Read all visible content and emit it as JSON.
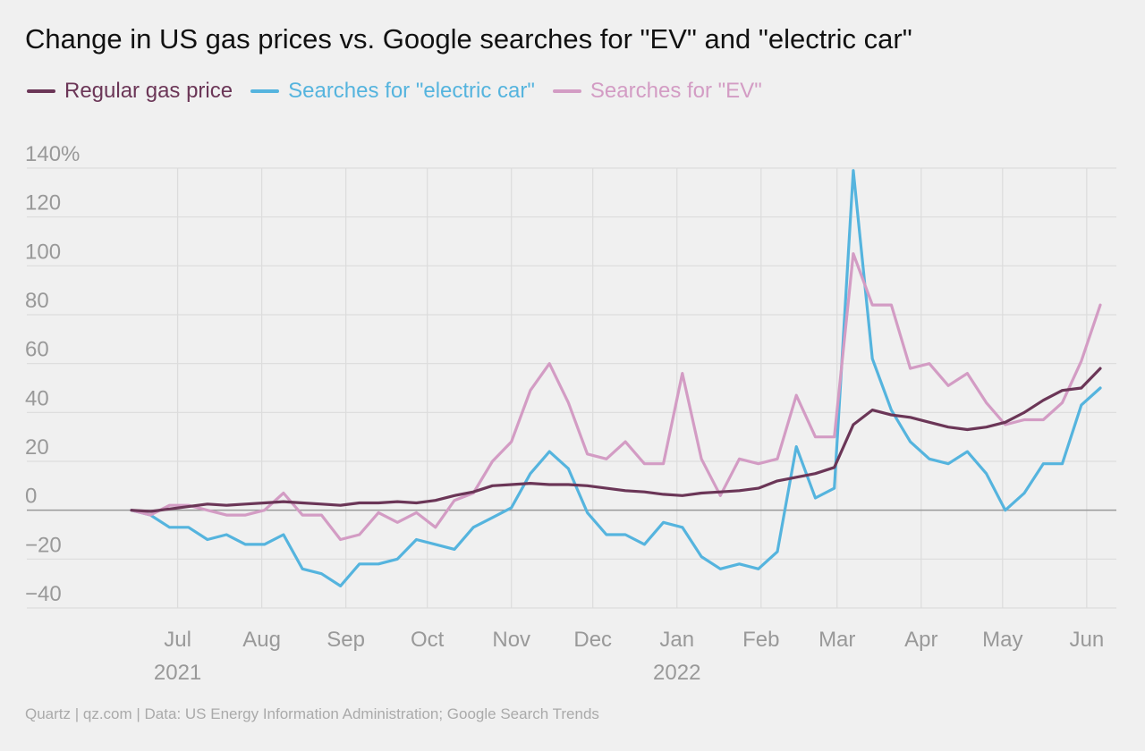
{
  "chart_data": {
    "type": "line",
    "title": "Change in US gas prices vs. Google searches for \"EV\" and \"electric car\"",
    "ylim": [
      -40,
      140
    ],
    "y_ticks": [
      {
        "value": 140,
        "label": "140%"
      },
      {
        "value": 120,
        "label": "120"
      },
      {
        "value": 100,
        "label": "100"
      },
      {
        "value": 80,
        "label": "80"
      },
      {
        "value": 60,
        "label": "60"
      },
      {
        "value": 40,
        "label": "40"
      },
      {
        "value": 20,
        "label": "20"
      },
      {
        "value": 0,
        "label": "0"
      },
      {
        "value": -20,
        "label": "−20"
      },
      {
        "value": -40,
        "label": "−40"
      }
    ],
    "x_ticks": [
      {
        "date": "2021-07-01",
        "label": "Jul",
        "year": "2021"
      },
      {
        "date": "2021-08-01",
        "label": "Aug"
      },
      {
        "date": "2021-09-01",
        "label": "Sep"
      },
      {
        "date": "2021-10-01",
        "label": "Oct"
      },
      {
        "date": "2021-11-01",
        "label": "Nov"
      },
      {
        "date": "2021-12-01",
        "label": "Dec"
      },
      {
        "date": "2022-01-01",
        "label": "Jan",
        "year": "2022"
      },
      {
        "date": "2022-02-01",
        "label": "Feb"
      },
      {
        "date": "2022-03-01",
        "label": "Mar"
      },
      {
        "date": "2022-04-01",
        "label": "Apr"
      },
      {
        "date": "2022-05-01",
        "label": "May"
      },
      {
        "date": "2022-06-01",
        "label": "Jun"
      }
    ],
    "x": [
      "2021-06-14",
      "2021-06-21",
      "2021-06-28",
      "2021-07-05",
      "2021-07-12",
      "2021-07-19",
      "2021-07-26",
      "2021-08-02",
      "2021-08-09",
      "2021-08-16",
      "2021-08-23",
      "2021-08-30",
      "2021-09-06",
      "2021-09-13",
      "2021-09-20",
      "2021-09-27",
      "2021-10-04",
      "2021-10-11",
      "2021-10-18",
      "2021-10-25",
      "2021-11-01",
      "2021-11-08",
      "2021-11-15",
      "2021-11-22",
      "2021-11-29",
      "2021-12-06",
      "2021-12-13",
      "2021-12-20",
      "2021-12-27",
      "2022-01-03",
      "2022-01-10",
      "2022-01-17",
      "2022-01-24",
      "2022-01-31",
      "2022-02-07",
      "2022-02-14",
      "2022-02-21",
      "2022-02-28",
      "2022-03-07",
      "2022-03-14",
      "2022-03-21",
      "2022-03-28",
      "2022-04-04",
      "2022-04-11",
      "2022-04-18",
      "2022-04-25",
      "2022-05-02",
      "2022-05-09",
      "2022-05-16",
      "2022-05-23",
      "2022-05-30",
      "2022-06-06"
    ],
    "series": [
      {
        "name": "Regular gas price",
        "color": "#6b3657",
        "values": [
          0,
          -0.5,
          0.5,
          1.5,
          2.5,
          2,
          2.5,
          3,
          3.5,
          3,
          2.5,
          2,
          3,
          3,
          3.5,
          3,
          4,
          6,
          7.5,
          10,
          10.5,
          11,
          10.5,
          10.5,
          10,
          9,
          8,
          7.5,
          6.5,
          6,
          7,
          7.5,
          8,
          9,
          12,
          13.5,
          15,
          17.5,
          35,
          41,
          39,
          38,
          36,
          34,
          33,
          34,
          36,
          40,
          45,
          49,
          50,
          58
        ]
      },
      {
        "name": "Searches for \"electric car\"",
        "color": "#55b4de",
        "values": [
          0,
          -2,
          -7,
          -7,
          -12,
          -10,
          -14,
          -14,
          -10,
          -24,
          -26,
          -31,
          -22,
          -22,
          -20,
          -12,
          -14,
          -16,
          -7,
          -3,
          1,
          15,
          24,
          17,
          -1,
          -10,
          -10,
          -14,
          -5,
          -7,
          -19,
          -24,
          -22,
          -24,
          -17,
          26,
          5,
          9,
          139,
          62,
          41,
          28,
          21,
          19,
          24,
          15,
          0,
          7,
          19,
          19,
          43,
          50
        ]
      },
      {
        "name": "Searches for \"EV\"",
        "color": "#d39cc4",
        "values": [
          0,
          -2,
          2,
          2,
          0,
          -2,
          -2,
          0,
          7,
          -2,
          -2,
          -12,
          -10,
          -1,
          -5,
          -1,
          -7,
          4,
          7,
          20,
          28,
          49,
          60,
          44,
          23,
          21,
          28,
          19,
          19,
          56,
          21,
          6,
          21,
          19,
          21,
          47,
          30,
          30,
          105,
          84,
          84,
          58,
          60,
          51,
          56,
          44,
          35,
          37,
          37,
          44,
          61,
          84
        ]
      }
    ]
  },
  "source": "Quartz | qz.com | Data: US Energy Information Administration; Google Search Trends"
}
